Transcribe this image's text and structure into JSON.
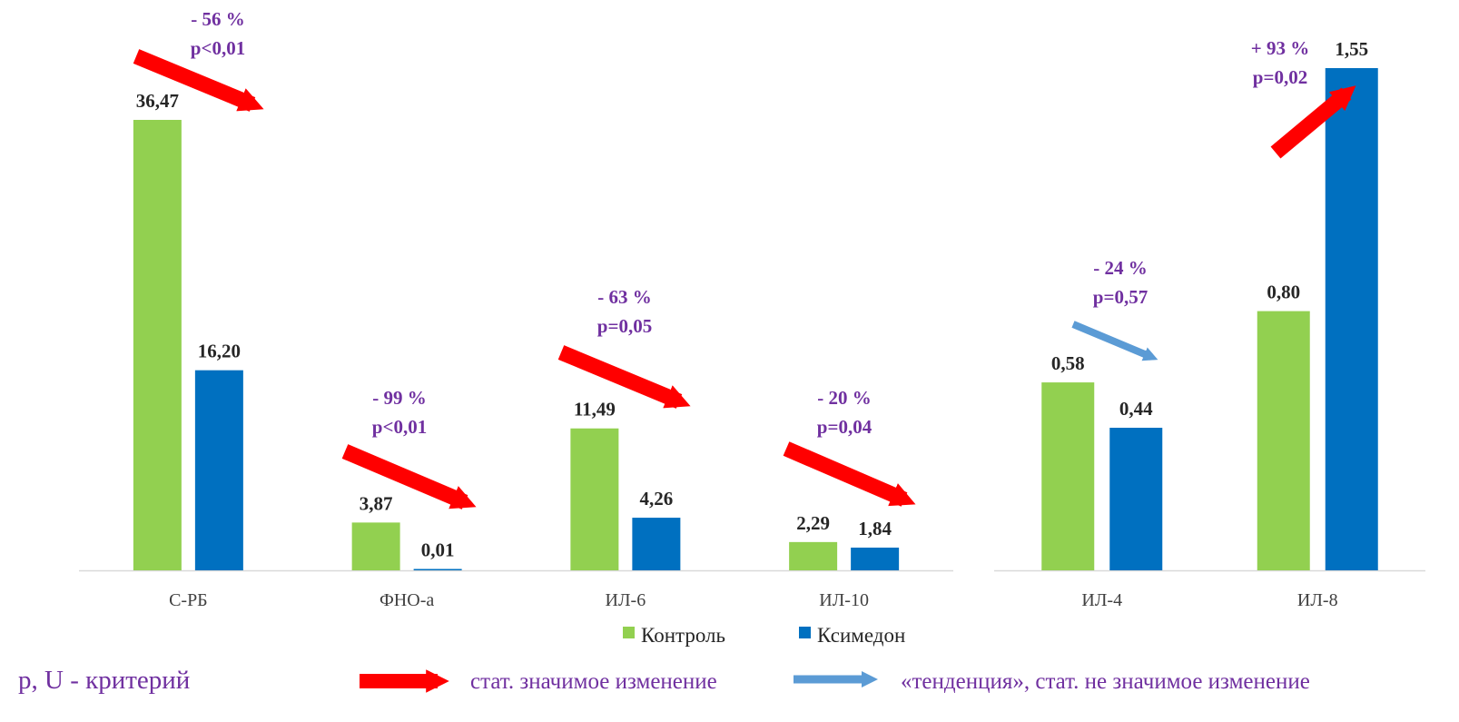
{
  "colors": {
    "control": "#92d050",
    "ksimedon": "#0070c0",
    "significant_arrow": "#ff0000",
    "trend_arrow": "#5b9bd5",
    "annotation_text": "#7030a0",
    "axis_line": "#d9d9d9"
  },
  "chart_data": [
    {
      "type": "bar",
      "categories": [
        "С-РБ",
        "ФНО-а",
        "ИЛ-6",
        "ИЛ-10"
      ],
      "series": [
        {
          "name": "Контроль",
          "values": [
            36.47,
            3.87,
            11.49,
            2.29
          ],
          "labels": [
            "36,47",
            "3,87",
            "11,49",
            "2,29"
          ]
        },
        {
          "name": "Ксимедон",
          "values": [
            16.2,
            0.01,
            4.26,
            1.84
          ],
          "labels": [
            "16,20",
            "0,01",
            "4,26",
            "1,84"
          ]
        }
      ],
      "annotations": [
        {
          "category": "С-РБ",
          "change": "- 56 %",
          "p": "p<0,01",
          "significant": true,
          "direction": "down"
        },
        {
          "category": "ФНО-а",
          "change": "- 99 %",
          "p": "p<0,01",
          "significant": true,
          "direction": "down"
        },
        {
          "category": "ИЛ-6",
          "change": "- 63 %",
          "p": "p=0,05",
          "significant": true,
          "direction": "down"
        },
        {
          "category": "ИЛ-10",
          "change": "- 20 %",
          "p": "p=0,04",
          "significant": true,
          "direction": "down"
        }
      ],
      "ylim": [
        0,
        36.47
      ]
    },
    {
      "type": "bar",
      "categories": [
        "ИЛ-4",
        "ИЛ-8"
      ],
      "series": [
        {
          "name": "Контроль",
          "values": [
            0.58,
            0.8
          ],
          "labels": [
            "0,58",
            "0,80"
          ]
        },
        {
          "name": "Ксимедон",
          "values": [
            0.44,
            1.55
          ],
          "labels": [
            "0,44",
            "1,55"
          ]
        }
      ],
      "annotations": [
        {
          "category": "ИЛ-4",
          "change": "- 24 %",
          "p": "p=0,57",
          "significant": false,
          "direction": "down"
        },
        {
          "category": "ИЛ-8",
          "change": "+ 93 %",
          "p": "p=0,02",
          "significant": true,
          "direction": "up"
        }
      ],
      "ylim": [
        0,
        1.55
      ]
    }
  ],
  "legend": {
    "items": [
      {
        "label": "Контроль",
        "series": "control"
      },
      {
        "label": "Ксимедон",
        "series": "ksimedon"
      }
    ],
    "placement": "bottom-center"
  },
  "footer": {
    "criterion": "p, U - критерий",
    "significant_label": "стат. значимое изменение",
    "trend_label": "«тенденция», стат. не значимое изменение"
  }
}
